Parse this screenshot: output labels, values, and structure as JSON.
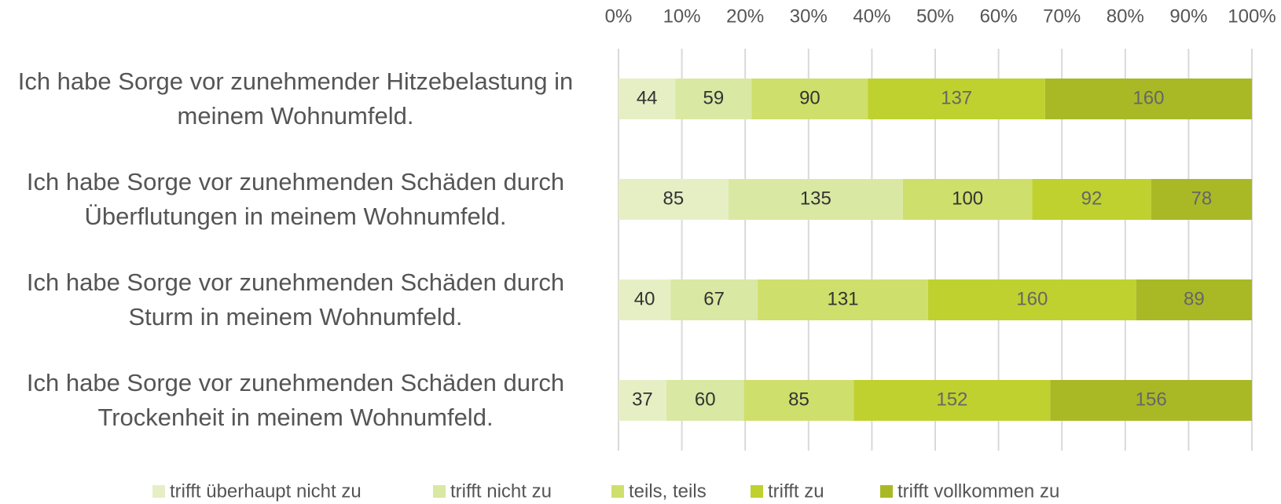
{
  "chart_data": {
    "type": "bar",
    "orientation": "horizontal",
    "stacking": "percent",
    "categories": [
      "Ich habe Sorge vor zunehmender Hitzebelastung in meinem Wohnumfeld.",
      "Ich habe Sorge vor zunehmenden Schäden durch Überflutungen in meinem Wohnumfeld.",
      "Ich habe Sorge vor zunehmenden Schäden durch Sturm in meinem Wohnumfeld.",
      "Ich habe Sorge vor zunehmenden Schäden durch Trockenheit in meinem Wohnumfeld."
    ],
    "series": [
      {
        "name": "trifft überhaupt nicht zu",
        "color": "#e6efc4",
        "values": [
          44,
          85,
          40,
          37
        ]
      },
      {
        "name": "trifft nicht zu",
        "color": "#d9e8a2",
        "values": [
          59,
          135,
          67,
          60
        ]
      },
      {
        "name": "teils, teils",
        "color": "#cfdf6b",
        "values": [
          90,
          100,
          131,
          85
        ]
      },
      {
        "name": "trifft zu",
        "color": "#bfd12f",
        "values": [
          137,
          92,
          160,
          152
        ]
      },
      {
        "name": "trifft vollkommen zu",
        "color": "#a9b926",
        "values": [
          160,
          78,
          89,
          156
        ]
      }
    ],
    "xlim": [
      0,
      100
    ],
    "xticks": [
      {
        "value": 0,
        "label": "0%"
      },
      {
        "value": 10,
        "label": "10%"
      },
      {
        "value": 20,
        "label": "20%"
      },
      {
        "value": 30,
        "label": "30%"
      },
      {
        "value": 40,
        "label": "40%"
      },
      {
        "value": 50,
        "label": "50%"
      },
      {
        "value": 60,
        "label": "60%"
      },
      {
        "value": 70,
        "label": "70%"
      },
      {
        "value": 80,
        "label": "80%"
      },
      {
        "value": 90,
        "label": "90%"
      },
      {
        "value": 100,
        "label": "100%"
      }
    ],
    "grid": true,
    "legend": "bottom"
  }
}
